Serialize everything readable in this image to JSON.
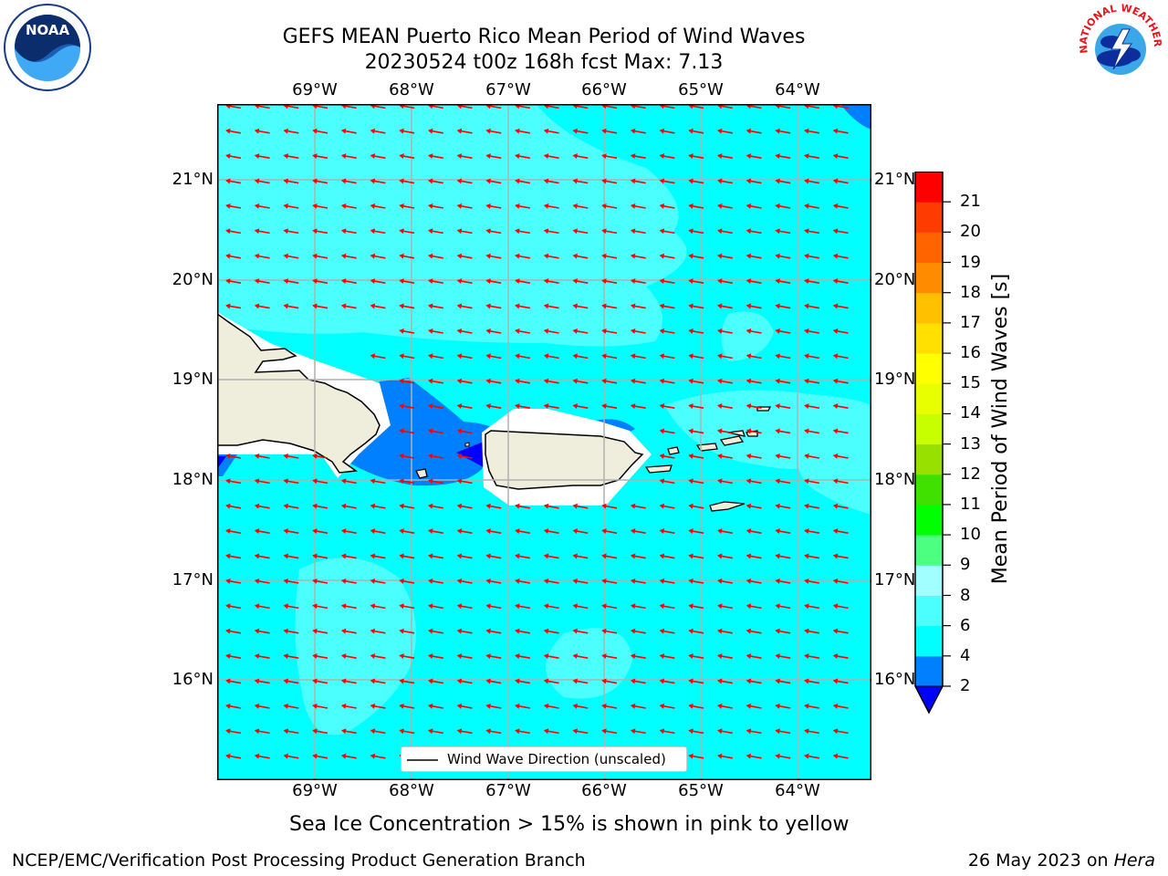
{
  "title": {
    "line1": "GEFS MEAN Puerto Rico Mean Period of Wind Waves",
    "line2": "20230524 t00z 168h fcst   Max: 7.13"
  },
  "map": {
    "lon_labels": [
      "69°W",
      "68°W",
      "67°W",
      "66°W",
      "65°W",
      "64°W"
    ],
    "lat_labels": [
      "21°N",
      "20°N",
      "19°N",
      "18°N",
      "17°N",
      "16°N"
    ],
    "legend_label": "Wind Wave Direction (unscaled)",
    "colors": {
      "sea": "#00ffff",
      "sea_light": "#4cffff",
      "sea_blue": "#0080ff",
      "sea_dark": "#0000ff",
      "land": "#efeedc",
      "arrow": "#ff0000",
      "grid": "#b0b0b0"
    }
  },
  "colorbar": {
    "label": "Mean Period of Wind Waves [s]",
    "ticks": [
      "2",
      "4",
      "6",
      "8",
      "9",
      "10",
      "11",
      "12",
      "13",
      "14",
      "15",
      "16",
      "17",
      "18",
      "19",
      "20",
      "21"
    ],
    "colors": [
      "#0080ff",
      "#00ffff",
      "#4cffff",
      "#a0ffff",
      "#4cff80",
      "#00ff00",
      "#40e000",
      "#98e000",
      "#c8ff00",
      "#e8ff00",
      "#ffff00",
      "#ffe000",
      "#ffc000",
      "#ff8c00",
      "#ff6400",
      "#ff3c00",
      "#ff0000"
    ],
    "extend_color": "#0000ff"
  },
  "subtitle": "Sea Ice Concentration > 15% is shown in pink to yellow",
  "footer": {
    "left": "NCEP/EMC/Verification Post Processing Product Generation Branch",
    "right_date": "26 May 2023 on ",
    "right_machine": "Hera"
  },
  "logos": {
    "noaa_text": "NOAA",
    "nws_text": "NATIONAL WEATHER SERVICE"
  }
}
